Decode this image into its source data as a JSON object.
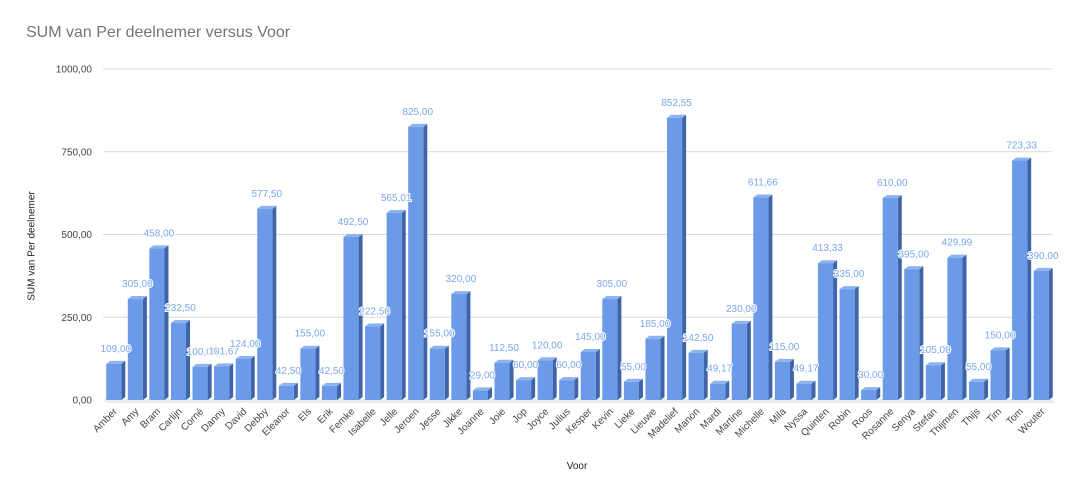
{
  "chart_data": {
    "type": "bar",
    "title": "SUM van Per deelnemer versus Voor",
    "xlabel": "Voor",
    "ylabel": "SUM van Per deelnemer",
    "ylim": [
      0,
      1000
    ],
    "yticks": [
      "0,00",
      "250,00",
      "500,00",
      "750,00",
      "1000,00"
    ],
    "grid": true,
    "legend": "none",
    "bar_color": "#6a9ae8",
    "bar_side_color": "#3f64a8",
    "label_color": "#7aa7ec",
    "categories": [
      "Amber",
      "Amy",
      "Bram",
      "Carlijn",
      "Corné",
      "Danny",
      "David",
      "Debby",
      "Eleanor",
      "Els",
      "Erik",
      "Femke",
      "Isabelle",
      "Jelle",
      "Jeroen",
      "Jesse",
      "Jikke",
      "Joanne",
      "Joie",
      "Jop",
      "Joyce",
      "Julius",
      "Kesper",
      "Kevin",
      "Lieke",
      "Lieuwe",
      "Madelief",
      "Manon",
      "Mardi",
      "Martine",
      "Michelle",
      "Mila",
      "Nyssa",
      "Quinten",
      "Robin",
      "Roos",
      "Rosanne",
      "Senya",
      "Stefan",
      "Thijmen",
      "Thijs",
      "Tim",
      "Tom",
      "Wouter"
    ],
    "values": [
      109.0,
      305.0,
      458.0,
      232.5,
      100.0,
      101.67,
      124.0,
      577.5,
      42.5,
      155.0,
      42.5,
      492.5,
      222.5,
      565.01,
      825.0,
      155.0,
      320.0,
      29.0,
      112.5,
      60.0,
      120.0,
      60.0,
      145.0,
      305.0,
      55.0,
      185.0,
      852.55,
      142.5,
      49.17,
      230.0,
      611.66,
      115.0,
      49.17,
      413.33,
      335.0,
      30.0,
      610.0,
      395.0,
      105.0,
      429.99,
      55.0,
      150.0,
      723.33,
      390.0
    ],
    "value_labels": [
      "109,00",
      "305,00",
      "458,00",
      "232,50",
      "100,00",
      "101,67",
      "124,00",
      "577,50",
      "42,50",
      "155,00",
      "42,50",
      "492,50",
      "222,50",
      "565,01",
      "825,00",
      "155,00",
      "320,00",
      "29,00",
      "112,50",
      "60,00",
      "120,00",
      "60,00",
      "145,00",
      "305,00",
      "55,00",
      "185,00",
      "852,55",
      "142,50",
      "49,17",
      "230,00",
      "611,66",
      "115,00",
      "49,17",
      "413,33",
      "335,00",
      "30,00",
      "610,00",
      "395,00",
      "105,00",
      "429,99",
      "55,00",
      "150,00",
      "723,33",
      "390,00"
    ]
  }
}
